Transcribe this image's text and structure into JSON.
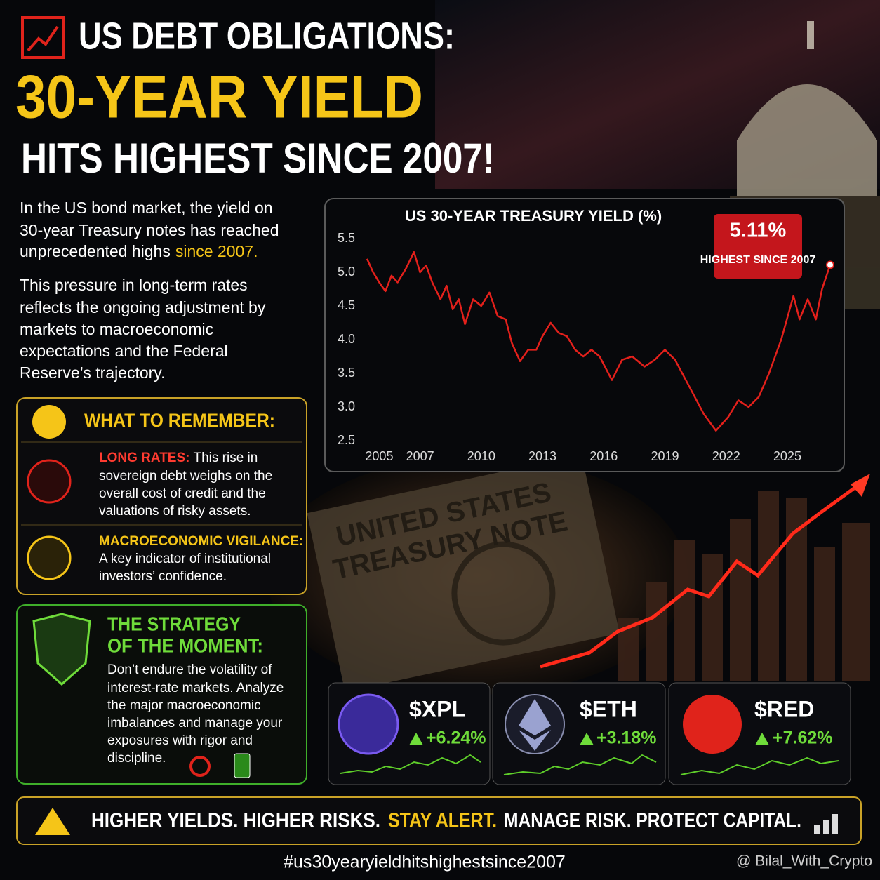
{
  "header": {
    "line1": "US DEBT OBLIGATIONS:",
    "line2": "30-YEAR YIELD",
    "line3": "HITS HIGHEST SINCE 2007!"
  },
  "intro": {
    "para1": [
      "In the US bond market, the yield on",
      "30-year Treasury notes has reached",
      "unprecedented highs"
    ],
    "para1_highlight": "since 2007.",
    "para2": [
      "This pressure in long-term rates",
      "reflects the ongoing adjustment by",
      "markets to macroeconomic",
      "expectations and the Federal",
      "Reserve’s trajectory."
    ]
  },
  "remember": {
    "title": "WHAT TO REMEMBER:",
    "items": [
      {
        "label": "LONG RATES:",
        "lines": [
          "This rise in",
          "sovereign debt weighs on the",
          "overall cost of credit and the",
          "valuations of risky assets."
        ]
      },
      {
        "label": "MACROECONOMIC VIGILANCE:",
        "lines": [
          "A key indicator of institutional",
          "investors’ confidence."
        ]
      }
    ]
  },
  "strategy": {
    "title": [
      "THE STRATEGY",
      "OF THE MOMENT:"
    ],
    "lines": [
      "Don’t endure the volatility of",
      "interest-rate markets. Analyze",
      "the major macroeconomic",
      "imbalances and manage your",
      "exposures with rigor and",
      "discipline."
    ]
  },
  "background": {
    "note": [
      "UNITED STATES",
      "TREASURY NOTE"
    ]
  },
  "tickers": [
    {
      "name": "$XPL",
      "change": "+6.24%"
    },
    {
      "name": "$ETH",
      "change": "+3.18%"
    },
    {
      "name": "$RED",
      "change": "+7.62%"
    }
  ],
  "banner": [
    "HIGHER YIELDS. HIGHER RISKS.",
    "STAY ALERT.",
    "MANAGE RISK. PROTECT CAPITAL."
  ],
  "footer": {
    "hashtag": "#us30yearyieldhitshighestsince2007",
    "handle": "@ Bilal_With_Crypto"
  },
  "chart_data": {
    "type": "line",
    "title": "US 30-YEAR TREASURY YIELD (%)",
    "color": "#e3201b",
    "x": [
      2004.4,
      2004.7,
      2005.0,
      2005.3,
      2005.6,
      2005.9,
      2006.3,
      2006.7,
      2007.0,
      2007.3,
      2007.6,
      2008.0,
      2008.3,
      2008.6,
      2008.9,
      2009.2,
      2009.6,
      2010.0,
      2010.4,
      2010.8,
      2011.2,
      2011.5,
      2011.9,
      2012.3,
      2012.7,
      2013.0,
      2013.4,
      2013.8,
      2014.2,
      2014.6,
      2015.0,
      2015.4,
      2015.8,
      2016.4,
      2016.9,
      2017.4,
      2018.0,
      2018.5,
      2019.0,
      2019.5,
      2020.2,
      2020.9,
      2021.5,
      2022.1,
      2022.6,
      2023.1,
      2023.6,
      2024.1,
      2024.7,
      2025.3,
      2025.6,
      2026.0,
      2026.4,
      2026.7,
      2027.1
    ],
    "values": [
      5.2,
      5.0,
      4.85,
      4.72,
      4.95,
      4.85,
      5.05,
      5.3,
      5.0,
      5.1,
      4.85,
      4.6,
      4.8,
      4.45,
      4.6,
      4.23,
      4.6,
      4.5,
      4.7,
      4.35,
      4.3,
      3.95,
      3.68,
      3.85,
      3.85,
      4.05,
      4.25,
      4.1,
      4.05,
      3.85,
      3.75,
      3.85,
      3.75,
      3.4,
      3.7,
      3.75,
      3.6,
      3.7,
      3.85,
      3.7,
      3.3,
      2.9,
      2.65,
      2.85,
      3.1,
      3.0,
      3.15,
      3.5,
      4.0,
      4.65,
      4.3,
      4.6,
      4.3,
      4.75,
      5.11
    ],
    "xlim": [
      2004.4,
      2027.1
    ],
    "xticks": [
      2005,
      2007,
      2010,
      2013,
      2016,
      2019,
      2022,
      2025
    ],
    "ylim": [
      2.5,
      5.5
    ],
    "yticks": [
      2.5,
      {
        "value": 3,
        "label": "3.0"
      },
      3.5,
      {
        "value": 4,
        "label": "4.0"
      },
      4.5,
      {
        "value": 5,
        "label": "5.0"
      },
      5.5
    ],
    "annotation": {
      "value_label": "5.11%",
      "text": "HIGHEST SINCE 2007"
    }
  }
}
